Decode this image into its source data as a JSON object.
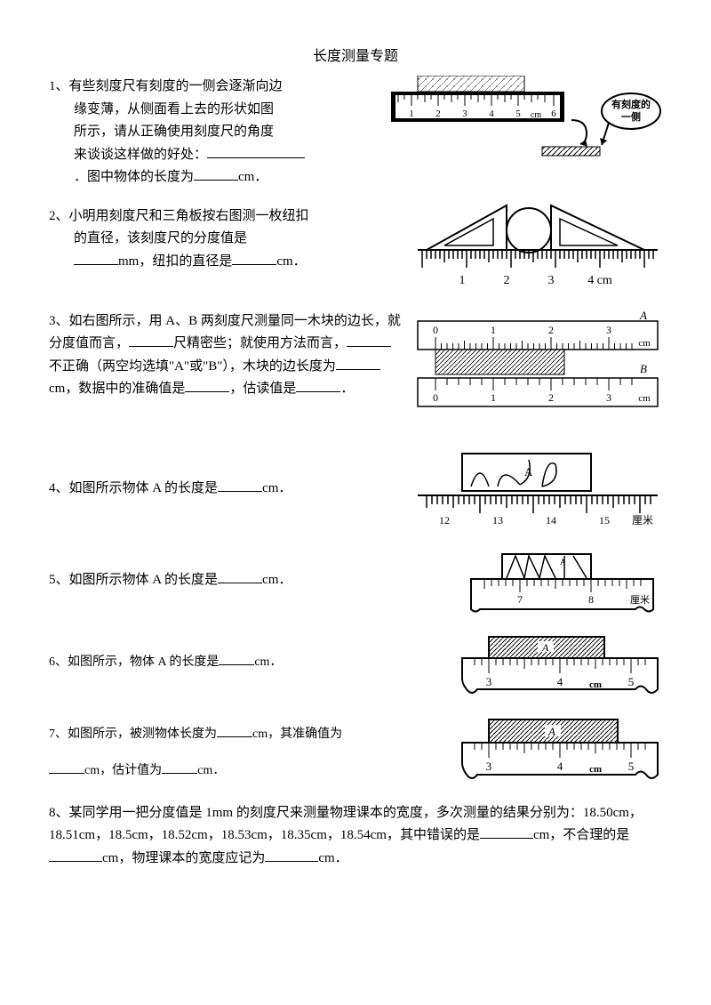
{
  "title": "长度测量专题",
  "q1": {
    "num": "1、",
    "line1": "有些刻度尺有刻度的一侧会逐渐向边",
    "line2": "缘变薄，从侧面看上去的形状如图",
    "line3": "所示，请从正确使用刻度尺的角度",
    "line4": "来谈谈这样做的好处：",
    "line5": "．图中物体的长度为",
    "unit": "cm．",
    "ruler_labels": [
      "1",
      "2",
      "3",
      "4",
      "5",
      "6"
    ],
    "ruler_unit": "cm",
    "callout": "有刻度的一侧"
  },
  "q2": {
    "num": "2、",
    "line1": "小明用刻度尺和三角板按右图测一枚纽扣",
    "line2": "的直径，该刻度尺的分度值是",
    "line3": "mm，纽扣的直径是",
    "unit": "cm．",
    "ruler_labels": [
      "1",
      "2",
      "3",
      "4 cm"
    ]
  },
  "q3": {
    "num": "3、",
    "text1": "如右图所示，用 A、B 两刻度尺测量同一木块的边长，就分度值而言，",
    "text2": "尺精密些；就使用方法而言，",
    "text3": "不正确（两空均选填\"A\"或\"B\"），木块的边长度为",
    "text4": "cm，数据中的准确值是",
    "text5": "，估读值是",
    "text6": "．",
    "labelA": "A",
    "labelB": "B",
    "ruler_labels": [
      "0",
      "1",
      "2",
      "3"
    ],
    "ruler_unit": "cm"
  },
  "q4": {
    "num": "4、",
    "text": "如图所示物体 A 的长度是",
    "unit": "cm．",
    "box_label": "A",
    "ruler_labels": [
      "12",
      "13",
      "14",
      "15"
    ],
    "ruler_unit": "厘米"
  },
  "q5": {
    "num": "5、",
    "text": "如图所示物体 A 的长度是",
    "unit": "cm．",
    "box_label": "A",
    "ruler_labels": [
      "7",
      "8"
    ],
    "ruler_unit": "厘米"
  },
  "q6": {
    "num": "6、",
    "text": "如图所示，物体 A 的长度是",
    "unit": "cm．",
    "box_label": "A",
    "ruler_labels": [
      "3",
      "4",
      "5"
    ],
    "ruler_unit": "cm"
  },
  "q7": {
    "num": "7、",
    "text1": "如图所示，被测物体长度为",
    "text2": "cm，其准确值为",
    "text3": "cm，估计值为",
    "text4": "cm．",
    "box_label": "A",
    "ruler_labels": [
      "3",
      "4",
      "5"
    ],
    "ruler_unit": "cm"
  },
  "q8": {
    "num": "8、",
    "text1": "某同学用一把分度值是 1mm 的刻度尺来测量物理课本的宽度，多次测量的结果分别为：18.50cm，18.51cm，18.5cm，18.52cm，18.53cm，18.35cm，18.54cm，其中错误的是",
    "text2": "cm，不合理的是",
    "text3": "cm，物理课本的宽度应记为",
    "text4": "cm．"
  },
  "colors": {
    "stroke": "#000000",
    "fill_white": "#ffffff",
    "ruler_dark": "#000000",
    "hatch": "#000000"
  }
}
